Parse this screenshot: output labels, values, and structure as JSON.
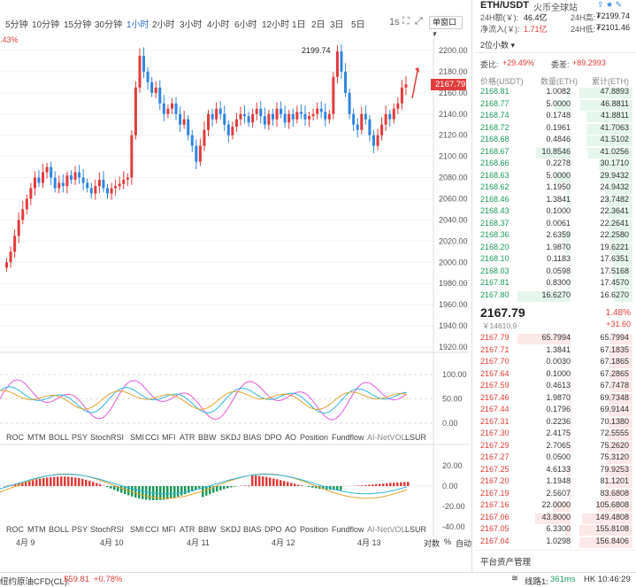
{
  "intervals": [
    "5分钟",
    "10分钟",
    "15分钟",
    "30分钟",
    "1小时",
    "2小时",
    "3小时",
    "4小时",
    "6小时",
    "12小时",
    "1日",
    "2日",
    "3日",
    "5日"
  ],
  "active_interval": "1小时",
  "toolbar": {
    "sel_label": "1s",
    "window_label": "单窗口"
  },
  "left_edge_pct": ".43%",
  "y_axis_main": [
    "2200.00",
    "2180.00",
    "2160.00",
    "2140.00",
    "2120.00",
    "2100.00",
    "2080.00",
    "2060.00",
    "2040.00",
    "2020.00",
    "2000.00",
    "1980.00",
    "1960.00",
    "1940.00",
    "1920.00"
  ],
  "high_marker": "2199.74",
  "last_price_tag": "2167.79",
  "osc_axis": [
    "100.00",
    "50.00",
    "0.00"
  ],
  "macd_axis": [
    "20.00",
    "0.00",
    "-20.00",
    "-40.00"
  ],
  "indicators": [
    "ROC",
    "MTM",
    "BOLL",
    "PSY",
    "StochRSI",
    "SMI",
    "CCI",
    "MFI",
    "ATR",
    "BBW",
    "SKDJ",
    "BIAS",
    "DPO",
    "AO",
    "Position",
    "Fundflow",
    "AI-NetVOL",
    "LSUR"
  ],
  "dates": [
    "4月 9",
    "4月 10",
    "4月 11",
    "4月 12",
    "4月 13"
  ],
  "axis_opts": {
    "log": "对数",
    "pct": "%",
    "auto": "自动"
  },
  "panel": {
    "pair": "ETH/USDT",
    "exchange": "火币全球站",
    "vol_label": "24H额(￥):",
    "vol_val": "46.4亿",
    "high_label": "24H高:",
    "high_val": "₮2199.74",
    "flow_label": "净流入(￥):",
    "flow_val": "1.71亿",
    "low_label": "24H低:",
    "low_val": "₮2101.46",
    "decimals": "2位小数",
    "ratio_label": "委比:",
    "ratio_val": "+29.49%",
    "diff_label": "委差:",
    "diff_val": "+89.2993",
    "col_price": "价格(USDT)",
    "col_qty": "数量(ETH)",
    "col_cum": "累计(ETH)",
    "bids": [
      [
        "2168.81",
        "1.0082",
        "47.8893"
      ],
      [
        "2168.77",
        "5.0000",
        "46.8811"
      ],
      [
        "2168.74",
        "0.1748",
        "41.8811"
      ],
      [
        "2168.72",
        "0.1961",
        "41.7063"
      ],
      [
        "2168.68",
        "0.4846",
        "41.5102"
      ],
      [
        "2168.67",
        "10.8546",
        "41.0256"
      ],
      [
        "2168.66",
        "0.2278",
        "30.1710"
      ],
      [
        "2168.63",
        "5.0000",
        "29.9432"
      ],
      [
        "2168.62",
        "1.1950",
        "24.9432"
      ],
      [
        "2168.46",
        "1.3841",
        "23.7482"
      ],
      [
        "2168.43",
        "0.1000",
        "22.3641"
      ],
      [
        "2168.37",
        "0.0061",
        "22.2641"
      ],
      [
        "2168.36",
        "2.6359",
        "22.2580"
      ],
      [
        "2168.20",
        "1.9870",
        "19.6221"
      ],
      [
        "2168.10",
        "0.1183",
        "17.6351"
      ],
      [
        "2168.03",
        "0.0598",
        "17.5168"
      ],
      [
        "2167.81",
        "0.8300",
        "17.4570"
      ],
      [
        "2167.80",
        "16.6270",
        "16.6270"
      ]
    ],
    "last": "2167.79",
    "last_cny": "￥14610.9",
    "chg_pct": "1.48%",
    "chg": "+31.60",
    "asks": [
      [
        "2167.79",
        "65.7994",
        "65.7994"
      ],
      [
        "2167.71",
        "1.3841",
        "67.1835"
      ],
      [
        "2167.70",
        "0.0030",
        "67.1865"
      ],
      [
        "2167.64",
        "0.1000",
        "67.2865"
      ],
      [
        "2167.59",
        "0.4613",
        "67.7478"
      ],
      [
        "2167.46",
        "1.9870",
        "69.7348"
      ],
      [
        "2167.44",
        "0.1796",
        "69.9144"
      ],
      [
        "2167.31",
        "0.2236",
        "70.1380"
      ],
      [
        "2167.30",
        "2.4175",
        "72.5555"
      ],
      [
        "2167.29",
        "2.7065",
        "75.2620"
      ],
      [
        "2167.27",
        "0.0500",
        "75.3120"
      ],
      [
        "2167.25",
        "4.6133",
        "79.9253"
      ],
      [
        "2167.20",
        "1.1948",
        "81.1201"
      ],
      [
        "2167.19",
        "2.5607",
        "83.6808"
      ],
      [
        "2167.16",
        "22.0000",
        "105.6808"
      ],
      [
        "2167.06",
        "43.8000",
        "149.4808"
      ],
      [
        "2167.05",
        "6.3300",
        "155.8108"
      ],
      [
        "2167.04",
        "1.0298",
        "156.8406"
      ]
    ],
    "assets": "平台资产管理"
  },
  "status": {
    "left_label": "纽约原油CFD(CL):",
    "left_price": "$59.81",
    "left_chg": "+0.78%",
    "line_label": "线路1:",
    "latency": "361ms",
    "clock": "HK 10:46:29"
  },
  "colors": {
    "up": "#e23b3b",
    "down": "#2f86e0",
    "bid": "#1a9a5a",
    "accent": "#2f6fd6"
  }
}
